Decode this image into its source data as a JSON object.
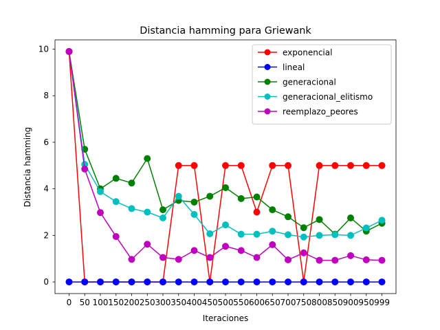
{
  "chart_data": {
    "type": "line",
    "title": "Distancia hamming para Griewank",
    "xlabel": "Iteraciones",
    "ylabel": "Distancia hamming",
    "x": [
      0,
      50,
      100,
      150,
      200,
      250,
      300,
      350,
      400,
      450,
      500,
      550,
      600,
      650,
      700,
      750,
      800,
      850,
      900,
      950,
      999
    ],
    "x_tick_labels": [
      "0",
      "50",
      "100",
      "150",
      "200",
      "250",
      "300",
      "350",
      "400",
      "450",
      "500",
      "550",
      "600",
      "650",
      "700",
      "750",
      "800",
      "850",
      "900",
      "950",
      "999"
    ],
    "yticks": [
      0,
      2,
      4,
      6,
      8,
      10
    ],
    "ylim": [
      -0.5,
      10.4
    ],
    "grid": false,
    "legend_position": "top-right",
    "series": [
      {
        "name": "exponencial",
        "color": "#ff0000",
        "values": [
          9.9,
          0,
          0,
          0,
          0,
          0,
          0,
          5,
          5,
          0,
          5,
          5,
          3,
          5,
          5,
          0,
          5,
          5,
          5,
          5,
          5
        ]
      },
      {
        "name": "lineal",
        "color": "#0000ff",
        "values": [
          0,
          0,
          0,
          0,
          0,
          0,
          0,
          0,
          0,
          0,
          0,
          0,
          0,
          0,
          0,
          0,
          0,
          0,
          0,
          0,
          0
        ]
      },
      {
        "name": "generacional",
        "color": "#008000",
        "values": [
          9.9,
          5.7,
          4.0,
          4.45,
          4.25,
          5.3,
          3.1,
          3.5,
          3.43,
          3.68,
          4.05,
          3.58,
          3.65,
          3.1,
          2.8,
          2.33,
          2.68,
          2.05,
          2.75,
          2.18,
          2.52
        ]
      },
      {
        "name": "generacional_elitismo",
        "color": "#00bfbf",
        "values": [
          9.9,
          5.05,
          3.88,
          3.45,
          3.15,
          3.0,
          2.75,
          3.68,
          2.9,
          2.07,
          2.45,
          2.05,
          2.05,
          2.18,
          2.03,
          1.93,
          2.0,
          2.03,
          2.0,
          2.32,
          2.65
        ]
      },
      {
        "name": "reemplazo_peores",
        "color": "#bf00bf",
        "values": [
          9.9,
          4.85,
          2.98,
          1.95,
          0.97,
          1.62,
          1.05,
          0.97,
          1.35,
          1.05,
          1.53,
          1.35,
          1.05,
          1.6,
          0.95,
          1.25,
          0.93,
          0.93,
          1.13,
          0.95,
          0.93
        ]
      }
    ]
  }
}
